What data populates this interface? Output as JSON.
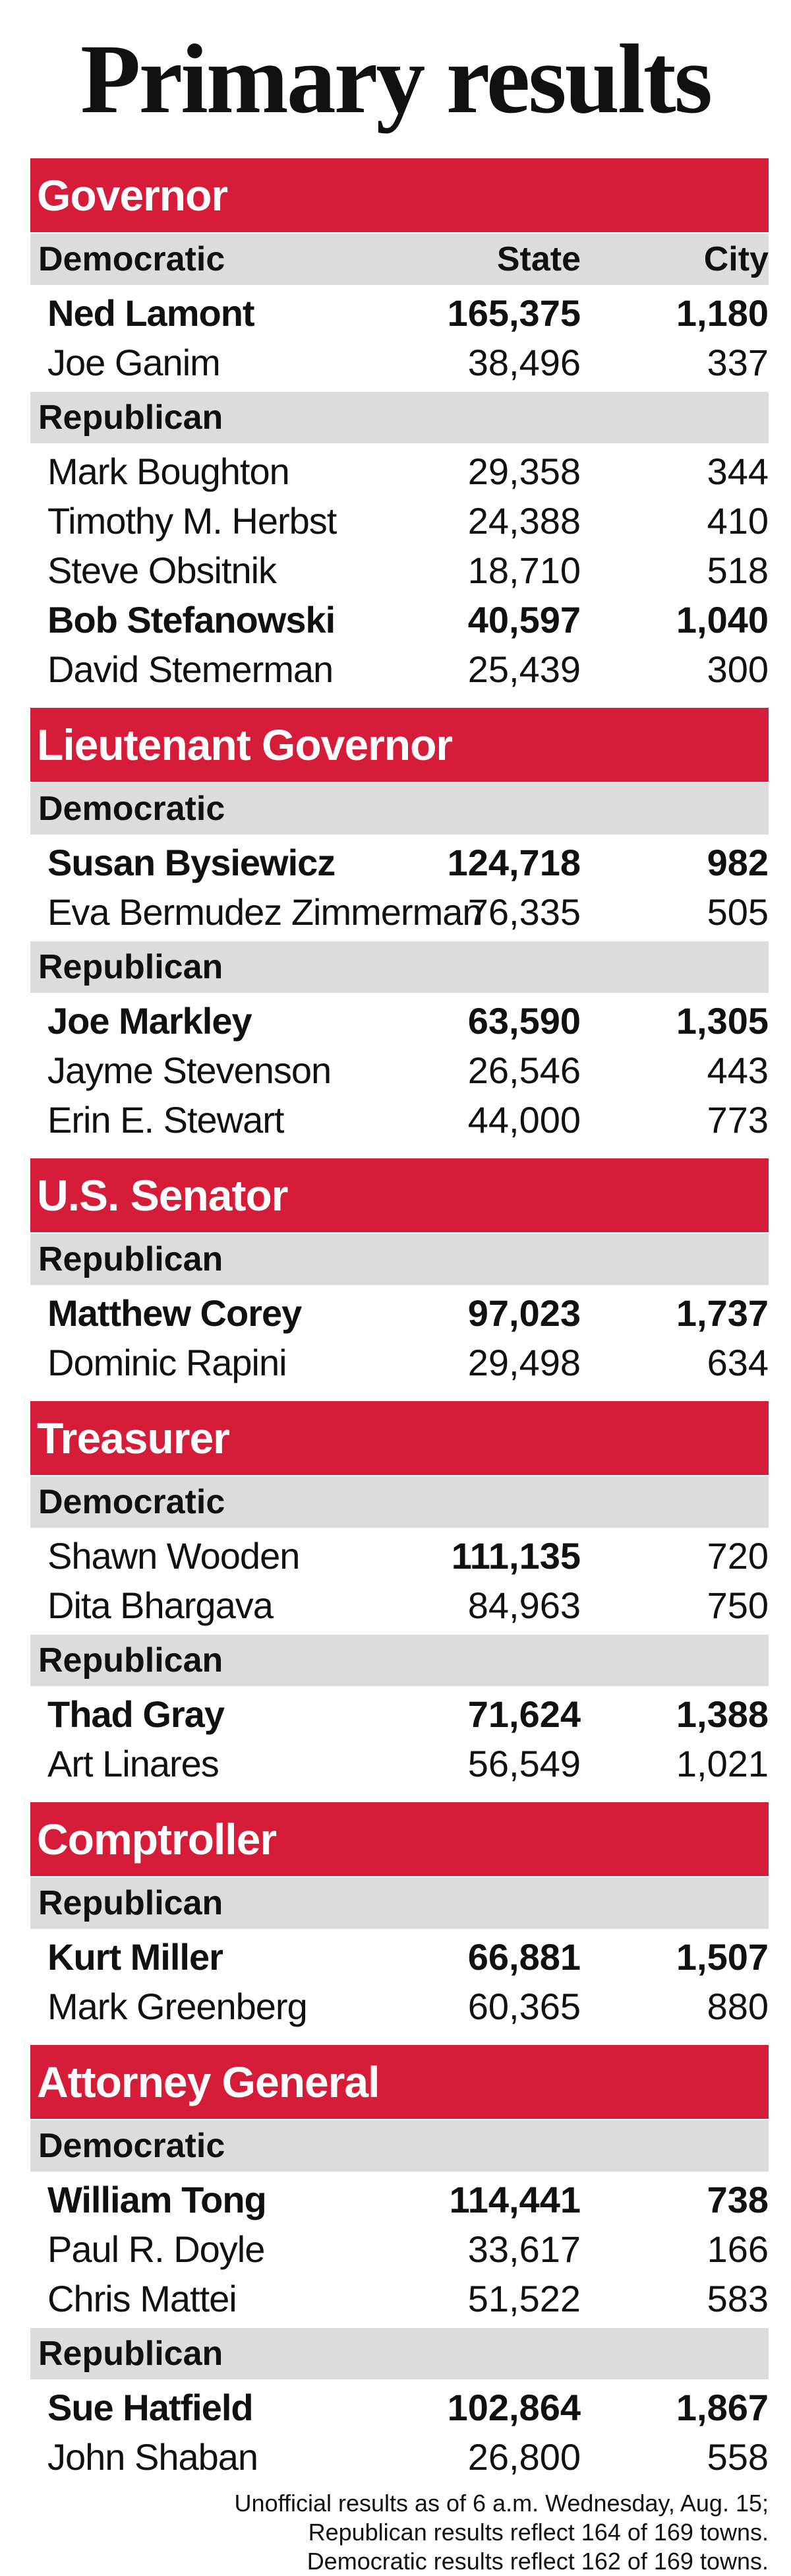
{
  "title": "Primary results",
  "columns": {
    "state": "State",
    "city": "City"
  },
  "races": [
    {
      "office": "Governor",
      "parties": [
        {
          "name": "Democratic",
          "candidates": [
            {
              "name": "Ned Lamont",
              "state": "165,375",
              "city": "1,180",
              "winner": true
            },
            {
              "name": "Joe Ganim",
              "state": "38,496",
              "city": "337",
              "winner": false
            }
          ]
        },
        {
          "name": "Republican",
          "candidates": [
            {
              "name": "Mark Boughton",
              "state": "29,358",
              "city": "344",
              "winner": false
            },
            {
              "name": "Timothy M. Herbst",
              "state": "24,388",
              "city": "410",
              "winner": false
            },
            {
              "name": "Steve Obsitnik",
              "state": "18,710",
              "city": "518",
              "winner": false
            },
            {
              "name": "Bob Stefanowski",
              "state": "40,597",
              "city": "1,040",
              "winner": true
            },
            {
              "name": "David Stemerman",
              "state": "25,439",
              "city": "300",
              "winner": false
            }
          ]
        }
      ]
    },
    {
      "office": "Lieutenant Governor",
      "parties": [
        {
          "name": "Democratic",
          "candidates": [
            {
              "name": "Susan Bysiewicz",
              "state": "124,718",
              "city": "982",
              "winner": true
            },
            {
              "name": "Eva Bermudez Zimmerman",
              "state": "76,335",
              "city": "505",
              "winner": false
            }
          ]
        },
        {
          "name": "Republican",
          "candidates": [
            {
              "name": "Joe Markley",
              "state": "63,590",
              "city": "1,305",
              "winner": true
            },
            {
              "name": "Jayme Stevenson",
              "state": "26,546",
              "city": "443",
              "winner": false
            },
            {
              "name": "Erin E. Stewart",
              "state": "44,000",
              "city": "773",
              "winner": false
            }
          ]
        }
      ]
    },
    {
      "office": "U.S. Senator",
      "parties": [
        {
          "name": "Republican",
          "candidates": [
            {
              "name": "Matthew Corey",
              "state": "97,023",
              "city": "1,737",
              "winner": true
            },
            {
              "name": "Dominic Rapini",
              "state": "29,498",
              "city": "634",
              "winner": false
            }
          ]
        }
      ]
    },
    {
      "office": "Treasurer",
      "parties": [
        {
          "name": "Democratic",
          "candidates": [
            {
              "name": "Shawn Wooden",
              "state": "111,135",
              "city": "720",
              "winner": false,
              "state_bold": true
            },
            {
              "name": "Dita Bhargava",
              "state": "84,963",
              "city": "750",
              "winner": false
            }
          ]
        },
        {
          "name": "Republican",
          "candidates": [
            {
              "name": "Thad Gray",
              "state": "71,624",
              "city": "1,388",
              "winner": true
            },
            {
              "name": "Art Linares",
              "state": "56,549",
              "city": "1,021",
              "winner": false
            }
          ]
        }
      ]
    },
    {
      "office": "Comptroller",
      "parties": [
        {
          "name": "Republican",
          "candidates": [
            {
              "name": "Kurt Miller",
              "state": "66,881",
              "city": "1,507",
              "winner": true
            },
            {
              "name": "Mark Greenberg",
              "state": "60,365",
              "city": "880",
              "winner": false
            }
          ]
        }
      ]
    },
    {
      "office": "Attorney General",
      "parties": [
        {
          "name": "Democratic",
          "candidates": [
            {
              "name": "William Tong",
              "state": "114,441",
              "city": "738",
              "winner": true
            },
            {
              "name": "Paul R. Doyle",
              "state": "33,617",
              "city": "166",
              "winner": false
            },
            {
              "name": "Chris Mattei",
              "state": "51,522",
              "city": "583",
              "winner": false
            }
          ]
        },
        {
          "name": "Republican",
          "candidates": [
            {
              "name": "Sue Hatfield",
              "state": "102,864",
              "city": "1,867",
              "winner": true
            },
            {
              "name": "John Shaban",
              "state": "26,800",
              "city": "558",
              "winner": false
            }
          ]
        }
      ]
    }
  ],
  "footnotes": [
    "Unofficial results as of 6 a.m. Wednesday, Aug. 15;",
    "Republican results reflect 164 of 169 towns.",
    "Democratic results reflect 162 of 169 towns."
  ]
}
